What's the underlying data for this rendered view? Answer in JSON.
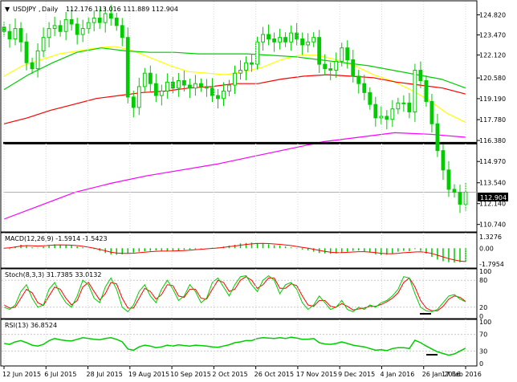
{
  "header": {
    "symbol": "USDJPY",
    "timeframe": "Daily",
    "quote": "112.176 113.016 111.889 112.904"
  },
  "chart_data": [
    {
      "panel": "price",
      "type": "candlestick",
      "title": "USDJPY,Daily 112.176 113.016 111.889 112.904",
      "x_ticks": [
        "12 Jun 2015",
        "6 Jul 2015",
        "28 Jul 2015",
        "19 Aug 2015",
        "10 Sep 2015",
        "2 Oct 2015",
        "26 Oct 2015",
        "17 Nov 2015",
        "9 Dec 2015",
        "4 Jan 2016",
        "26 Jan 2016",
        "17 Feb 2016"
      ],
      "y_ticks": [
        "124.820",
        "123.470",
        "122.120",
        "120.580",
        "119.190",
        "117.780",
        "116.380",
        "114.970",
        "113.540",
        "112.140",
        "110.740"
      ],
      "ylim": [
        110.4,
        125.6
      ],
      "current_price_label": "112.904",
      "current_price": 112.904,
      "horizontal_support_line": 116.2,
      "closes": [
        123.7,
        123.2,
        123.9,
        123.0,
        121.6,
        121.2,
        122.4,
        123.3,
        123.9,
        124.1,
        123.7,
        124.5,
        124.2,
        123.5,
        123.9,
        124.3,
        124.6,
        124.3,
        124.9,
        124.6,
        124.1,
        123.3,
        119.3,
        118.6,
        120.0,
        120.9,
        120.2,
        119.4,
        119.7,
        120.3,
        119.9,
        120.4,
        120.1,
        119.9,
        120.2,
        120.0,
        119.9,
        119.4,
        119.2,
        119.7,
        120.1,
        120.9,
        121.1,
        121.6,
        121.5,
        123.0,
        123.5,
        123.2,
        123.0,
        123.3,
        123.0,
        123.6,
        123.2,
        122.8,
        123.0,
        123.3,
        121.5,
        121.2,
        121.1,
        121.7,
        122.6,
        121.8,
        120.7,
        120.2,
        119.6,
        118.8,
        117.9,
        118.0,
        117.8,
        118.5,
        118.9,
        118.9,
        118.3,
        121.1,
        120.4,
        119.0,
        117.5,
        115.7,
        114.4,
        113.1,
        112.9,
        112.1,
        112.9
      ],
      "moving_averages": [
        {
          "name": "MA yellow",
          "color": "#ffff00",
          "values": [
            120.7,
            121.4,
            121.8,
            122.2,
            122.4,
            122.6,
            122.7,
            122.4,
            121.9,
            121.4,
            121.0,
            120.9,
            120.8,
            121.0,
            121.3,
            121.8,
            122.1,
            122.1,
            121.8,
            121.4,
            120.8,
            120.4,
            119.8,
            119.1,
            118.2,
            117.6
          ]
        },
        {
          "name": "MA green",
          "color": "#00cc00",
          "values": [
            119.8,
            120.8,
            121.6,
            122.3,
            122.6,
            122.4,
            122.3,
            122.3,
            122.2,
            122.2,
            122.2,
            122.1,
            122.0,
            121.8,
            121.6,
            121.4,
            121.1,
            120.8,
            120.5,
            119.9
          ]
        },
        {
          "name": "MA red",
          "color": "#ff0000",
          "values": [
            117.5,
            117.9,
            118.4,
            118.8,
            119.2,
            119.4,
            119.6,
            119.7,
            119.9,
            120.0,
            120.2,
            120.2,
            120.5,
            120.7,
            120.8,
            120.7,
            120.6,
            120.3,
            120.1,
            119.9,
            119.5
          ]
        },
        {
          "name": "MA magenta",
          "color": "#ff00ff",
          "values": [
            111.1,
            112.0,
            112.9,
            113.5,
            114.0,
            114.4,
            114.8,
            115.3,
            115.8,
            116.3,
            116.6,
            116.9,
            116.8,
            116.6
          ]
        }
      ]
    },
    {
      "panel": "macd",
      "type": "bar",
      "label": "MACD(12,26,9) -1.5914 -1.5423",
      "y_ticks": [
        "1.3276",
        "0.00",
        "-1.7954"
      ],
      "ylim": [
        -2.0,
        1.5
      ],
      "histogram": [
        -0.05,
        -0.1,
        0.2,
        0.4,
        0.3,
        0.1,
        0.05,
        0.2,
        0.35,
        0.45,
        0.4,
        0.35,
        0.3,
        0.2,
        0.1,
        0.0,
        -0.1,
        -0.3,
        -0.55,
        -0.7,
        -0.75,
        -0.7,
        -0.6,
        -0.5,
        -0.4,
        -0.35,
        -0.3,
        -0.25,
        -0.3,
        -0.35,
        -0.3,
        -0.25,
        -0.2,
        -0.15,
        -0.1,
        -0.05,
        0.0,
        0.05,
        0.1,
        0.2,
        0.3,
        0.4,
        0.55,
        0.6,
        0.65,
        0.6,
        0.55,
        0.45,
        0.35,
        0.3,
        0.2,
        0.1,
        -0.05,
        -0.15,
        -0.25,
        -0.4,
        -0.55,
        -0.6,
        -0.65,
        -0.6,
        -0.5,
        -0.4,
        -0.3,
        -0.25,
        -0.35,
        -0.5,
        -0.7,
        -0.8,
        -0.75,
        -0.6,
        -0.4,
        -0.3,
        -0.35,
        -0.1,
        -0.3,
        -0.6,
        -1.0,
        -1.3,
        -1.5,
        -1.6,
        -1.65,
        -1.6,
        -1.59
      ],
      "signal": [
        0.0,
        0.05,
        0.15,
        0.25,
        0.3,
        0.28,
        0.25,
        0.28,
        0.32,
        0.37,
        0.39,
        0.38,
        0.35,
        0.3,
        0.22,
        0.12,
        0.0,
        -0.15,
        -0.3,
        -0.45,
        -0.55,
        -0.6,
        -0.6,
        -0.57,
        -0.52,
        -0.46,
        -0.4,
        -0.35,
        -0.33,
        -0.33,
        -0.32,
        -0.3,
        -0.27,
        -0.22,
        -0.17,
        -0.12,
        -0.07,
        -0.02,
        0.03,
        0.1,
        0.18,
        0.26,
        0.35,
        0.43,
        0.5,
        0.54,
        0.55,
        0.53,
        0.49,
        0.44,
        0.38,
        0.3,
        0.2,
        0.1,
        0.0,
        -0.12,
        -0.25,
        -0.36,
        -0.45,
        -0.5,
        -0.5,
        -0.47,
        -0.43,
        -0.4,
        -0.4,
        -0.44,
        -0.5,
        -0.58,
        -0.63,
        -0.63,
        -0.58,
        -0.52,
        -0.48,
        -0.43,
        -0.42,
        -0.48,
        -0.6,
        -0.8,
        -1.0,
        -1.2,
        -1.35,
        -1.47,
        -1.54
      ]
    },
    {
      "panel": "stoch",
      "type": "line",
      "label": "Stoch(8,3,3) 31.7385 33.0132",
      "y_ticks": [
        "100",
        "80",
        "20",
        "0"
      ],
      "ylim": [
        0,
        100
      ],
      "main": [
        20,
        15,
        25,
        55,
        70,
        40,
        20,
        25,
        60,
        75,
        50,
        30,
        20,
        45,
        80,
        70,
        40,
        30,
        65,
        85,
        60,
        20,
        10,
        25,
        55,
        70,
        45,
        30,
        60,
        80,
        60,
        35,
        45,
        70,
        55,
        30,
        40,
        75,
        85,
        65,
        45,
        70,
        88,
        90,
        70,
        55,
        80,
        90,
        80,
        50,
        70,
        75,
        60,
        30,
        15,
        25,
        45,
        30,
        15,
        20,
        35,
        15,
        10,
        20,
        15,
        25,
        20,
        30,
        35,
        45,
        60,
        88,
        85,
        50,
        20,
        12,
        10,
        15,
        30,
        45,
        48,
        38,
        32
      ],
      "signal": [
        25,
        18,
        20,
        40,
        60,
        52,
        30,
        24,
        45,
        65,
        60,
        40,
        25,
        35,
        65,
        75,
        55,
        36,
        50,
        75,
        72,
        40,
        18,
        18,
        40,
        62,
        55,
        38,
        48,
        70,
        68,
        45,
        42,
        60,
        60,
        40,
        38,
        60,
        80,
        75,
        55,
        60,
        80,
        88,
        80,
        62,
        70,
        85,
        85,
        62,
        62,
        72,
        68,
        45,
        25,
        22,
        35,
        35,
        22,
        20,
        28,
        22,
        14,
        16,
        18,
        22,
        22,
        26,
        32,
        40,
        52,
        75,
        85,
        65,
        35,
        18,
        12,
        12,
        22,
        38,
        45,
        42,
        33
      ]
    },
    {
      "panel": "rsi",
      "type": "line",
      "label": "RSI(13) 36.8524",
      "y_ticks": [
        "100",
        "70",
        "30",
        "0"
      ],
      "ylim": [
        0,
        100
      ],
      "values": [
        48,
        46,
        52,
        55,
        50,
        44,
        42,
        46,
        55,
        60,
        57,
        55,
        54,
        58,
        62,
        60,
        58,
        57,
        60,
        62,
        58,
        52,
        35,
        32,
        40,
        44,
        42,
        38,
        40,
        44,
        42,
        45,
        43,
        42,
        44,
        43,
        42,
        40,
        39,
        42,
        45,
        50,
        52,
        55,
        55,
        60,
        62,
        61,
        60,
        62,
        60,
        63,
        61,
        58,
        58,
        60,
        50,
        47,
        46,
        48,
        52,
        48,
        44,
        42,
        40,
        36,
        32,
        33,
        31,
        36,
        38,
        38,
        36,
        56,
        50,
        42,
        35,
        28,
        24,
        20,
        23,
        30,
        37
      ]
    }
  ],
  "colors": {
    "bull_candle": "#00ff00",
    "bear_candle": "#00ff00",
    "macd_histogram": "#00cc00",
    "macd_signal": "#ff0000",
    "stoch_main": "#00cc00",
    "stoch_signal": "#ff0000",
    "rsi_line": "#00cc00",
    "support_line": "#000000",
    "grid": "#c8c8c8"
  }
}
